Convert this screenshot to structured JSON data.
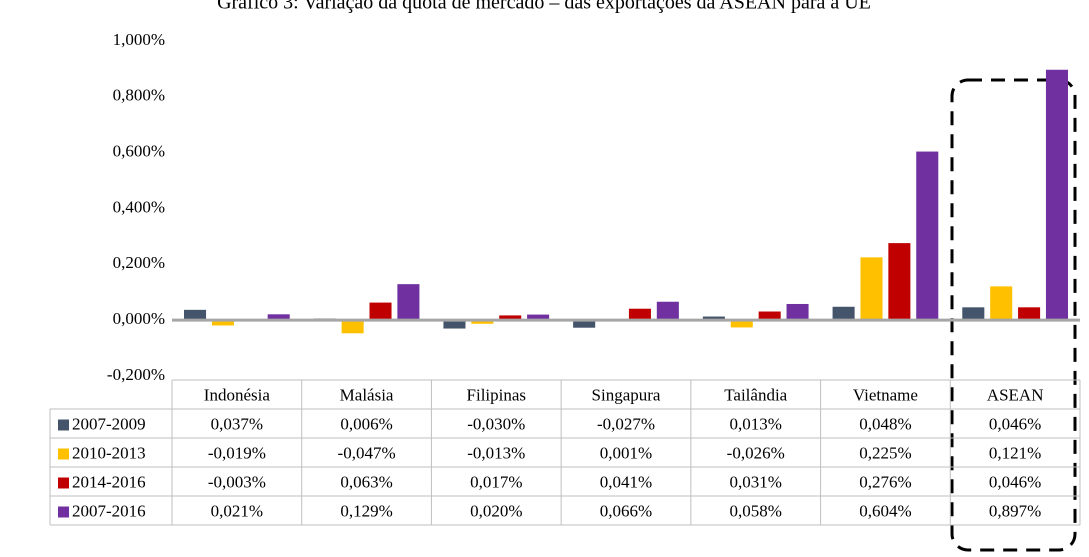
{
  "chart_data": {
    "type": "bar",
    "title": "Gráfico 3: Variação da quota de mercado – das exportações da ASEAN para a UE",
    "categories": [
      "Indonésia",
      "Malásia",
      "Filipinas",
      "Singapura",
      "Tailândia",
      "Vietname",
      "ASEAN"
    ],
    "series": [
      {
        "name": "2007-2009",
        "color": "#44546a",
        "values": [
          0.037,
          0.006,
          -0.03,
          -0.027,
          0.013,
          0.048,
          0.046
        ],
        "value_labels": [
          "0,037%",
          "0,006%",
          "-0,030%",
          "-0,027%",
          "0,013%",
          "0,048%",
          "0,046%"
        ]
      },
      {
        "name": "2010-2013",
        "color": "#ffc000",
        "values": [
          -0.019,
          -0.047,
          -0.013,
          0.001,
          -0.026,
          0.225,
          0.121
        ],
        "value_labels": [
          "-0,019%",
          "-0,047%",
          "-0,013%",
          "0,001%",
          "-0,026%",
          "0,225%",
          "0,121%"
        ]
      },
      {
        "name": "2014-2016",
        "color": "#c00000",
        "values": [
          -0.003,
          0.063,
          0.017,
          0.041,
          0.031,
          0.276,
          0.046
        ],
        "value_labels": [
          "-0,003%",
          "0,063%",
          "0,017%",
          "0,041%",
          "0,031%",
          "0,276%",
          "0,046%"
        ]
      },
      {
        "name": "2007-2016",
        "color": "#7030a0",
        "values": [
          0.021,
          0.129,
          0.02,
          0.066,
          0.058,
          0.604,
          0.897
        ],
        "value_labels": [
          "0,021%",
          "0,129%",
          "0,020%",
          "0,066%",
          "0,058%",
          "0,604%",
          "0,897%"
        ]
      }
    ],
    "ylim": [
      -0.2,
      1.0
    ],
    "yticks": [
      {
        "value": -0.2,
        "label": "-0,200%"
      },
      {
        "value": 0,
        "label": "0,000%"
      },
      {
        "value": 0.2,
        "label": "0,200%"
      },
      {
        "value": 0.4,
        "label": "0,400%"
      },
      {
        "value": 0.6,
        "label": "0,600%"
      },
      {
        "value": 0.8,
        "label": "0,800%"
      },
      {
        "value": 1.0,
        "label": "1,000%"
      }
    ],
    "grid": false
  }
}
